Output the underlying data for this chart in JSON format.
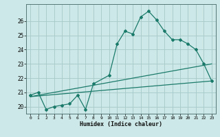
{
  "xlabel": "Humidex (Indice chaleur)",
  "bg_color": "#cde8e8",
  "grid_color": "#aacccc",
  "line_color": "#1a7a6a",
  "xlim": [
    -0.5,
    23.5
  ],
  "ylim": [
    19.5,
    27.2
  ],
  "xticks": [
    0,
    1,
    2,
    3,
    4,
    5,
    6,
    7,
    8,
    9,
    10,
    11,
    12,
    13,
    14,
    15,
    16,
    17,
    18,
    19,
    20,
    21,
    22,
    23
  ],
  "yticks": [
    20,
    21,
    22,
    23,
    24,
    25,
    26
  ],
  "line1_x": [
    0,
    1,
    2,
    3,
    4,
    5,
    6,
    7,
    8,
    10,
    11,
    12,
    13,
    14,
    15,
    16,
    17,
    18,
    19,
    20,
    21,
    22,
    23
  ],
  "line1_y": [
    20.8,
    21.0,
    19.8,
    20.0,
    20.1,
    20.2,
    20.8,
    19.8,
    21.6,
    22.2,
    24.4,
    25.3,
    25.1,
    26.3,
    26.7,
    26.1,
    25.3,
    24.7,
    24.7,
    24.4,
    24.0,
    23.0,
    21.8
  ],
  "line2_x": [
    0,
    23
  ],
  "line2_y": [
    20.7,
    21.8
  ],
  "line3_x": [
    0,
    23
  ],
  "line3_y": [
    20.7,
    23.0
  ]
}
